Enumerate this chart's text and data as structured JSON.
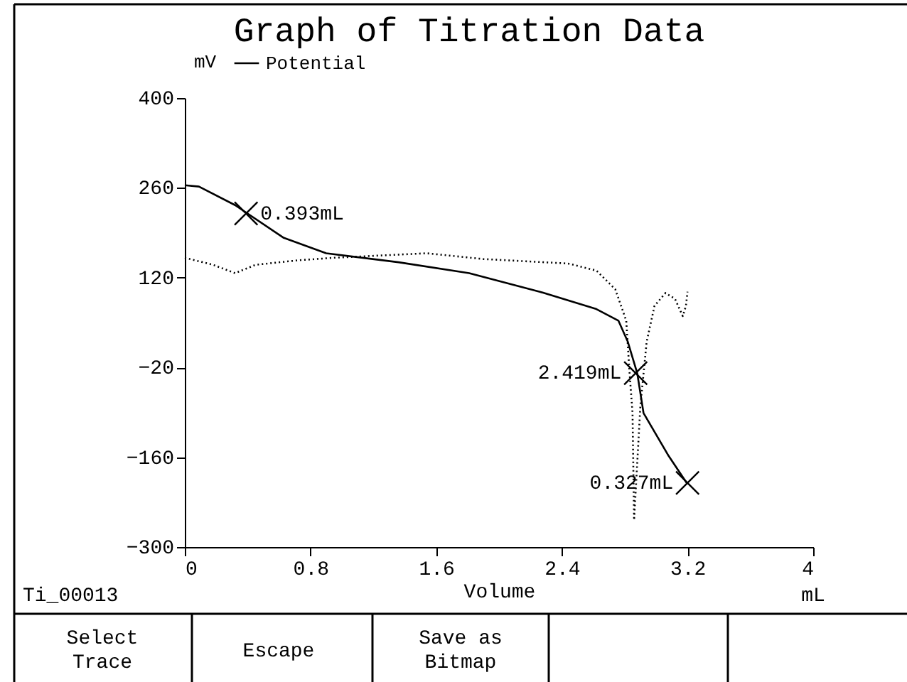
{
  "chart_data": {
    "type": "line",
    "title": "Graph of Titration Data",
    "xlabel": "Volume",
    "ylabel": "mV",
    "xlim": [
      0,
      4
    ],
    "xticks": [
      0,
      0.8,
      1.6,
      2.4,
      3.2,
      4
    ],
    "ylim": [
      -300,
      400
    ],
    "yticks": [
      -300,
      -160,
      -20,
      120,
      260,
      400
    ],
    "grid": false,
    "legend": "top left",
    "marker": "none",
    "series": [
      {
        "name": "Potential",
        "color": "#000000",
        "line_style": "solid",
        "x": [
          0,
          0.09,
          0.32,
          0.63,
          0.9,
          1.36,
          1.81,
          2.26,
          2.62,
          2.76,
          2.82,
          2.88,
          2.92,
          3.08,
          3.2
        ],
        "values": [
          264,
          262,
          233,
          182,
          158,
          144,
          127,
          98,
          71,
          53,
          20,
          -29,
          -91,
          -158,
          -202
        ]
      },
      {
        "color": "#000000",
        "line_style": "dotted",
        "x": [
          0,
          0.18,
          0.32,
          0.45,
          0.72,
          0.95,
          1.54,
          1.9,
          2.44,
          2.62,
          2.74,
          2.81,
          2.83,
          2.85,
          2.86,
          2.9,
          2.94,
          2.99,
          3.06,
          3.12,
          3.17,
          3.19,
          3.2
        ],
        "values": [
          151,
          140,
          127,
          140,
          147,
          151,
          158,
          149,
          142,
          131,
          102,
          53,
          -24,
          -91,
          -258,
          -80,
          20,
          76,
          96,
          87,
          60,
          76,
          98
        ]
      }
    ],
    "annotations": [
      "Ti_00013",
      "mL",
      "Select Trace",
      "Escape",
      "Save as Bitmap",
      {
        "text": "0.393mL",
        "x": 0.39,
        "y": 220
      },
      {
        "text": "2.419mL",
        "x": 2.87,
        "y": -29
      },
      {
        "text": "0.327mL",
        "x": 3.2,
        "y": -200
      }
    ]
  }
}
